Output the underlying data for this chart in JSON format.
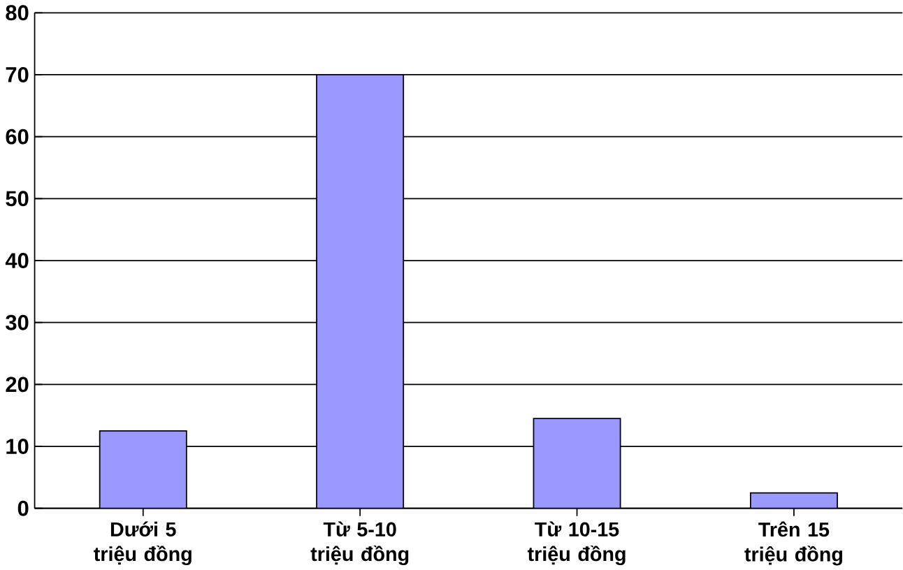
{
  "chart_data": {
    "type": "bar",
    "categories": [
      "Dưới 5 triệu đồng",
      "Từ 5-10 triệu đồng",
      "Từ 10-15 triệu đồng",
      "Trên 15 triệu đồng"
    ],
    "values": [
      12.5,
      70,
      14.5,
      2.5
    ],
    "color": "#9999ff",
    "ylim": [
      0,
      80
    ],
    "yticks": [
      0,
      10,
      20,
      30,
      40,
      50,
      60,
      70,
      80
    ],
    "grid": "y"
  }
}
